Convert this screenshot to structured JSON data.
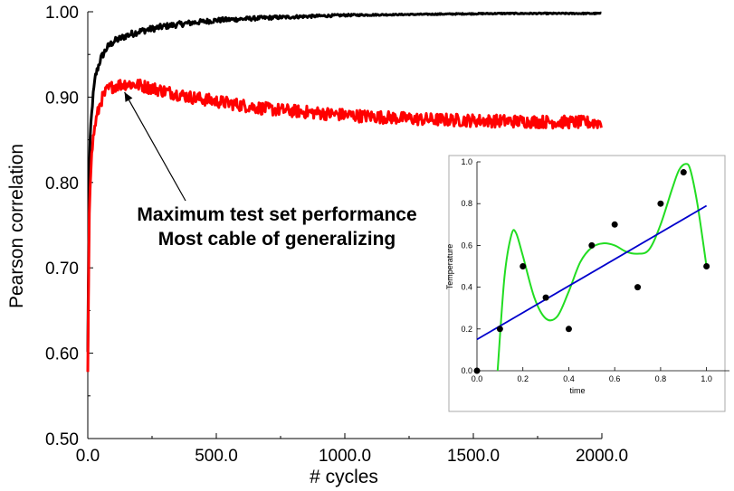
{
  "chart_data": [
    {
      "type": "line",
      "xlabel": "# cycles",
      "ylabel": "Pearson correlation",
      "xlim": [
        0,
        2000
      ],
      "ylim": [
        0.5,
        1.0
      ],
      "x_ticks": [
        "0.0",
        "500.0",
        "1000.0",
        "1500.0",
        "2000.0"
      ],
      "y_ticks": [
        "0.50",
        "0.60",
        "0.70",
        "0.80",
        "0.90",
        "1.00"
      ],
      "grid": false,
      "series": [
        {
          "color": "#000000",
          "x": [
            0,
            5,
            10,
            20,
            30,
            50,
            75,
            100,
            150,
            200,
            300,
            400,
            500,
            700,
            1000,
            1300,
            1600,
            2000
          ],
          "y": [
            0.6,
            0.8,
            0.86,
            0.9,
            0.925,
            0.945,
            0.958,
            0.965,
            0.972,
            0.977,
            0.983,
            0.987,
            0.99,
            0.993,
            0.996,
            0.997,
            0.998,
            0.998
          ]
        },
        {
          "color": "#ff0000",
          "x": [
            0,
            5,
            10,
            20,
            30,
            50,
            75,
            100,
            150,
            200,
            300,
            400,
            500,
            700,
            1000,
            1300,
            1600,
            2000
          ],
          "y": [
            0.58,
            0.76,
            0.81,
            0.85,
            0.87,
            0.895,
            0.908,
            0.913,
            0.916,
            0.914,
            0.907,
            0.9,
            0.895,
            0.886,
            0.879,
            0.874,
            0.872,
            0.87
          ]
        }
      ],
      "annotation": {
        "lines": [
          "Maximum test set performance",
          "Most cable of generalizing"
        ],
        "arrow_to": [
          150,
          0.91
        ]
      }
    },
    {
      "type": "scatter",
      "xlabel": "time",
      "ylabel": "Temperature",
      "xlim": [
        0,
        1.1
      ],
      "ylim": [
        0,
        1.0
      ],
      "x_ticks": [
        "0.0",
        "0.2",
        "0.4",
        "0.6",
        "0.8",
        "1.0"
      ],
      "y_ticks": [
        "0.0",
        "0.2",
        "0.4",
        "0.6",
        "0.8",
        "1.0"
      ],
      "points": {
        "x": [
          0.0,
          0.1,
          0.2,
          0.3,
          0.4,
          0.5,
          0.6,
          0.7,
          0.8,
          0.9,
          1.0
        ],
        "y": [
          0.0,
          0.2,
          0.5,
          0.35,
          0.2,
          0.6,
          0.7,
          0.4,
          0.8,
          0.95,
          0.5
        ]
      },
      "fit_line": {
        "color": "#0000cc",
        "x": [
          0.0,
          1.0
        ],
        "y": [
          0.15,
          0.79
        ]
      },
      "fit_curve": {
        "color": "#22dd22",
        "x": [
          0.09,
          0.12,
          0.15,
          0.17,
          0.2,
          0.25,
          0.3,
          0.35,
          0.4,
          0.45,
          0.5,
          0.55,
          0.6,
          0.65,
          0.7,
          0.75,
          0.8,
          0.85,
          0.88,
          0.91,
          0.93,
          0.96,
          1.0
        ],
        "y": [
          0.0,
          0.45,
          0.65,
          0.66,
          0.55,
          0.35,
          0.25,
          0.26,
          0.38,
          0.52,
          0.59,
          0.61,
          0.6,
          0.57,
          0.56,
          0.58,
          0.7,
          0.87,
          0.96,
          0.99,
          0.96,
          0.8,
          0.5
        ]
      }
    }
  ]
}
